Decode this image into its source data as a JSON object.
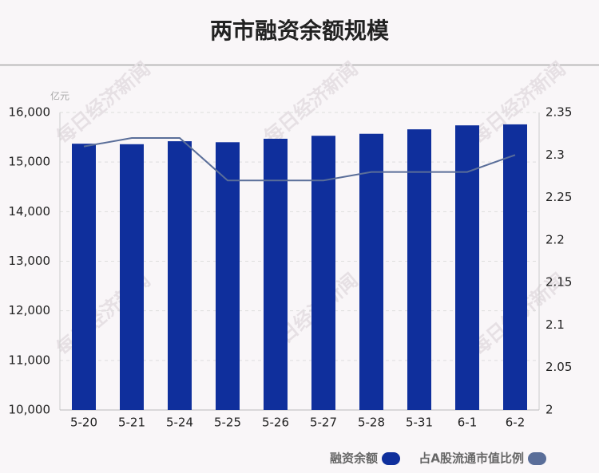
{
  "chart_data": {
    "type": "bar_line",
    "title": "两市融资余额规模",
    "y_unit": "亿元",
    "watermark": "每日经济新闻",
    "categories": [
      "5-20",
      "5-21",
      "5-24",
      "5-25",
      "5-26",
      "5-27",
      "5-28",
      "5-31",
      "6-1",
      "6-2"
    ],
    "series": [
      {
        "name": "融资余额",
        "type": "bar",
        "color": "#0f2f9c",
        "values": [
          15370,
          15360,
          15420,
          15400,
          15470,
          15530,
          15570,
          15660,
          15740,
          15760
        ]
      },
      {
        "name": "占A股流通市值比例",
        "type": "line",
        "axis": "y2",
        "color": "#5a6e99",
        "values": [
          2.31,
          2.32,
          2.32,
          2.27,
          2.27,
          2.27,
          2.28,
          2.28,
          2.28,
          2.3
        ]
      }
    ],
    "ylim": [
      10000,
      16000
    ],
    "yticks": [
      {
        "value": 10000,
        "label": "10,000"
      },
      {
        "value": 11000,
        "label": "11,000"
      },
      {
        "value": 12000,
        "label": "12,000"
      },
      {
        "value": 13000,
        "label": "13,000"
      },
      {
        "value": 14000,
        "label": "14,000"
      },
      {
        "value": 15000,
        "label": "15,000"
      },
      {
        "value": 16000,
        "label": "16,000"
      }
    ],
    "y2lim": [
      2,
      2.35
    ],
    "y2ticks": [
      2,
      2.05,
      2.1,
      2.15,
      2.2,
      2.25,
      2.3,
      2.35
    ],
    "grid": true,
    "legend": "bottom-right"
  }
}
